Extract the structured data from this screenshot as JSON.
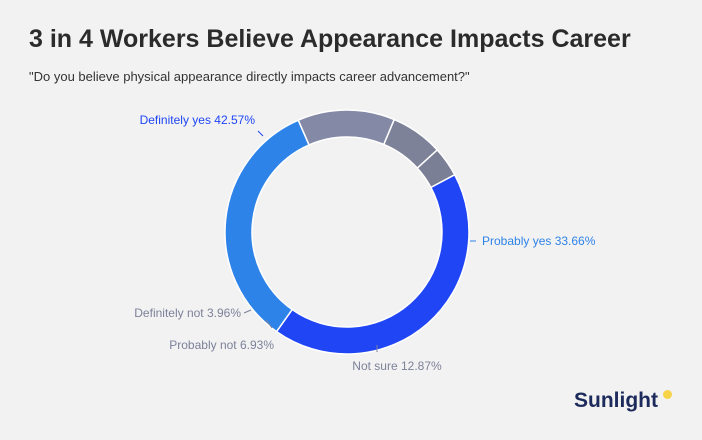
{
  "title": "3 in 4 Workers Believe Appearance Impacts Career",
  "subtitle": "\"Do you believe physical appearance directly impacts career advancement?\"",
  "brand": "Sunlight",
  "chart_data": {
    "type": "pie",
    "donut": true,
    "slices": [
      {
        "label": "Definitely yes 42.57%",
        "name": "Definitely yes",
        "value": 42.57,
        "color": "#1f45f5",
        "label_color": "#1f45f5"
      },
      {
        "label": "Probably yes 33.66%",
        "name": "Probably yes",
        "value": 33.66,
        "color": "#2e83e8",
        "label_color": "#2e83e8"
      },
      {
        "label": "Not sure 12.87%",
        "name": "Not sure",
        "value": 12.87,
        "color": "#848aa6",
        "label_color": "#7d8199"
      },
      {
        "label": "Probably not 6.93%",
        "name": "Probably not",
        "value": 6.93,
        "color": "#7d8299",
        "label_color": "#7d8199"
      },
      {
        "label": "Definitely not 3.96%",
        "name": "Definitely not",
        "value": 3.96,
        "color": "#7a7f96",
        "label_color": "#7d8199"
      }
    ]
  }
}
